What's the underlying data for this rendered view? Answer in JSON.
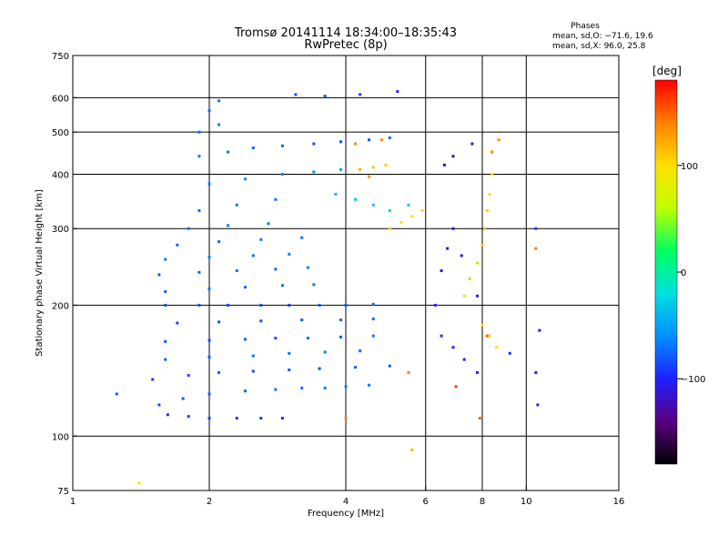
{
  "title": "Tromsø 20141114 18:34:00–18:35:43",
  "subtitle": "RwPretec (8p)",
  "stats": {
    "heading": "Phases",
    "line_o": "mean, sd,O: −71.6, 19.6",
    "line_x": "mean, sd,X:  96.0, 25.8"
  },
  "colorbar": {
    "unit_label": "[deg]",
    "range": [
      -180,
      180
    ],
    "ticks": [
      {
        "value": 100,
        "label": "100"
      },
      {
        "value": 0,
        "label": "0"
      },
      {
        "value": -100,
        "label": "−100"
      }
    ],
    "stops": [
      "#000000",
      "#5a0080",
      "#2020ff",
      "#0090ff",
      "#00e0e0",
      "#00ff60",
      "#c0ff00",
      "#ffe000",
      "#ff8000",
      "#ff0000"
    ]
  },
  "chart_data": {
    "type": "scatter",
    "title": "Tromsø 20141114 18:34:00–18:35:43",
    "subtitle": "RwPretec (8p)",
    "xlabel": "Frequency [MHz]",
    "ylabel": "Stationary phase Virtual Height [km]",
    "x_scale": "log",
    "y_scale": "log",
    "xlim": [
      1,
      16
    ],
    "ylim": [
      75,
      750
    ],
    "x_ticks": [
      {
        "value": 1,
        "label": "1"
      },
      {
        "value": 2,
        "label": "2"
      },
      {
        "value": 4,
        "label": "4"
      },
      {
        "value": 6,
        "label": "6"
      },
      {
        "value": 8,
        "label": "8"
      },
      {
        "value": 10,
        "label": "10"
      },
      {
        "value": 16,
        "label": "16"
      }
    ],
    "x_gridlines": [
      2,
      4,
      6,
      8,
      10
    ],
    "y_ticks": [
      {
        "value": 75,
        "label": "75"
      },
      {
        "value": 100,
        "label": "100"
      },
      {
        "value": 200,
        "label": "200"
      },
      {
        "value": 300,
        "label": "300"
      },
      {
        "value": 400,
        "label": "400"
      },
      {
        "value": 500,
        "label": "500"
      },
      {
        "value": 600,
        "label": "600"
      },
      {
        "value": 750,
        "label": "750"
      }
    ],
    "y_gridlines": [
      100,
      200,
      300,
      400,
      500,
      600
    ],
    "grid": true,
    "colorbar_label": "[deg]",
    "series": [
      {
        "points": [
          [
            1.62,
            112,
            -95
          ],
          [
            1.8,
            111,
            -90
          ],
          [
            2.0,
            110,
            -88
          ],
          [
            2.3,
            110,
            -92
          ],
          [
            2.6,
            110,
            -90
          ],
          [
            2.9,
            110,
            -95
          ],
          [
            1.55,
            118,
            -85
          ],
          [
            1.75,
            122,
            -80
          ],
          [
            2.0,
            125,
            -78
          ],
          [
            2.4,
            127,
            -75
          ],
          [
            2.8,
            128,
            -70
          ],
          [
            3.2,
            129,
            -72
          ],
          [
            3.6,
            129,
            -68
          ],
          [
            4.0,
            130,
            -65
          ],
          [
            4.5,
            131,
            -70
          ],
          [
            1.5,
            135,
            -90
          ],
          [
            1.8,
            138,
            -85
          ],
          [
            2.1,
            140,
            -82
          ],
          [
            2.5,
            141,
            -88
          ],
          [
            3.0,
            142,
            -80
          ],
          [
            3.5,
            143,
            -85
          ],
          [
            4.2,
            144,
            -78
          ],
          [
            5.0,
            145,
            -82
          ],
          [
            1.6,
            150,
            -75
          ],
          [
            2.0,
            152,
            -78
          ],
          [
            2.5,
            153,
            -70
          ],
          [
            3.0,
            155,
            -72
          ],
          [
            3.6,
            156,
            -68
          ],
          [
            4.3,
            157,
            -75
          ],
          [
            1.6,
            165,
            -80
          ],
          [
            2.0,
            166,
            -85
          ],
          [
            2.4,
            167,
            -78
          ],
          [
            2.8,
            168,
            -82
          ],
          [
            3.3,
            168,
            -75
          ],
          [
            3.9,
            169,
            -80
          ],
          [
            4.6,
            170,
            -72
          ],
          [
            1.7,
            182,
            -88
          ],
          [
            2.1,
            183,
            -82
          ],
          [
            2.6,
            184,
            -85
          ],
          [
            3.2,
            185,
            -80
          ],
          [
            3.9,
            185,
            -78
          ],
          [
            4.6,
            186,
            -75
          ],
          [
            1.6,
            200,
            -85
          ],
          [
            1.9,
            200,
            -82
          ],
          [
            2.2,
            200,
            -90
          ],
          [
            2.6,
            200,
            -88
          ],
          [
            3.0,
            200,
            -92
          ],
          [
            3.5,
            200,
            -85
          ],
          [
            4.0,
            200,
            -80
          ],
          [
            4.6,
            201,
            -78
          ],
          [
            1.6,
            215,
            -78
          ],
          [
            2.0,
            218,
            -72
          ],
          [
            2.4,
            220,
            -75
          ],
          [
            2.9,
            222,
            -70
          ],
          [
            3.4,
            223,
            -68
          ],
          [
            1.55,
            235,
            -80
          ],
          [
            1.9,
            238,
            -76
          ],
          [
            2.3,
            240,
            -72
          ],
          [
            2.8,
            242,
            -74
          ],
          [
            3.3,
            244,
            -68
          ],
          [
            1.6,
            255,
            -70
          ],
          [
            2.0,
            258,
            -68
          ],
          [
            2.5,
            260,
            -72
          ],
          [
            3.0,
            262,
            -65
          ],
          [
            1.7,
            275,
            -75
          ],
          [
            2.1,
            280,
            -70
          ],
          [
            2.6,
            283,
            -68
          ],
          [
            3.2,
            286,
            -72
          ],
          [
            1.8,
            300,
            -72
          ],
          [
            2.2,
            305,
            -68
          ],
          [
            2.7,
            308,
            -70
          ],
          [
            1.9,
            330,
            -74
          ],
          [
            2.3,
            340,
            -70
          ],
          [
            2.8,
            350,
            -68
          ],
          [
            2.0,
            380,
            -65
          ],
          [
            2.4,
            390,
            -62
          ],
          [
            2.9,
            400,
            -60
          ],
          [
            3.4,
            405,
            -58
          ],
          [
            3.9,
            410,
            -55
          ],
          [
            1.9,
            440,
            -68
          ],
          [
            2.2,
            450,
            -72
          ],
          [
            2.5,
            460,
            -74
          ],
          [
            2.9,
            465,
            -78
          ],
          [
            3.4,
            470,
            -82
          ],
          [
            3.9,
            475,
            -85
          ],
          [
            4.5,
            480,
            -80
          ],
          [
            5.0,
            485,
            -75
          ],
          [
            1.9,
            500,
            -70
          ],
          [
            2.1,
            520,
            -66
          ],
          [
            2.0,
            560,
            -72
          ],
          [
            2.1,
            590,
            -68
          ],
          [
            3.1,
            610,
            -80
          ],
          [
            3.6,
            605,
            -85
          ],
          [
            4.3,
            610,
            -90
          ],
          [
            5.2,
            620,
            -95
          ],
          [
            3.8,
            360,
            -40
          ],
          [
            4.2,
            350,
            -38
          ],
          [
            4.6,
            340,
            -35
          ],
          [
            5.0,
            330,
            -30
          ],
          [
            5.5,
            340,
            -32
          ],
          [
            4.3,
            410,
            120
          ],
          [
            4.6,
            415,
            115
          ],
          [
            4.9,
            420,
            110
          ],
          [
            4.5,
            395,
            130
          ],
          [
            4.2,
            470,
            140
          ],
          [
            4.8,
            480,
            135
          ],
          [
            5.0,
            300,
            105
          ],
          [
            5.3,
            310,
            100
          ],
          [
            5.6,
            320,
            98
          ],
          [
            5.9,
            330,
            102
          ],
          [
            6.3,
            200,
            -100
          ],
          [
            6.5,
            240,
            -105
          ],
          [
            6.7,
            270,
            -110
          ],
          [
            6.9,
            300,
            -108
          ],
          [
            7.2,
            260,
            -112
          ],
          [
            7.5,
            230,
            -106
          ],
          [
            7.8,
            210,
            -110
          ],
          [
            6.5,
            170,
            -95
          ],
          [
            6.9,
            160,
            -100
          ],
          [
            7.3,
            150,
            -98
          ],
          [
            7.8,
            140,
            -102
          ],
          [
            7.3,
            210,
            100
          ],
          [
            7.5,
            230,
            105
          ],
          [
            7.8,
            250,
            108
          ],
          [
            8.0,
            275,
            110
          ],
          [
            8.1,
            300,
            112
          ],
          [
            8.2,
            330,
            108
          ],
          [
            8.3,
            360,
            104
          ],
          [
            8.4,
            400,
            100
          ],
          [
            8.0,
            180,
            95
          ],
          [
            8.3,
            170,
            98
          ],
          [
            8.6,
            160,
            100
          ],
          [
            6.6,
            420,
            -130
          ],
          [
            6.9,
            440,
            -125
          ],
          [
            7.6,
            470,
            -120
          ],
          [
            8.4,
            450,
            140
          ],
          [
            8.7,
            480,
            135
          ],
          [
            8.2,
            170,
            150
          ],
          [
            7.0,
            130,
            160
          ],
          [
            5.5,
            140,
            140
          ],
          [
            10.5,
            300,
            -90
          ],
          [
            10.5,
            270,
            140
          ],
          [
            10.5,
            140,
            -100
          ],
          [
            10.6,
            118,
            -105
          ],
          [
            10.7,
            175,
            -110
          ],
          [
            9.2,
            155,
            -95
          ],
          [
            1.4,
            78,
            100
          ],
          [
            5.6,
            93,
            120
          ],
          [
            4.0,
            110,
            140
          ],
          [
            7.9,
            110,
            150
          ],
          [
            1.25,
            125,
            -80
          ]
        ]
      }
    ]
  }
}
